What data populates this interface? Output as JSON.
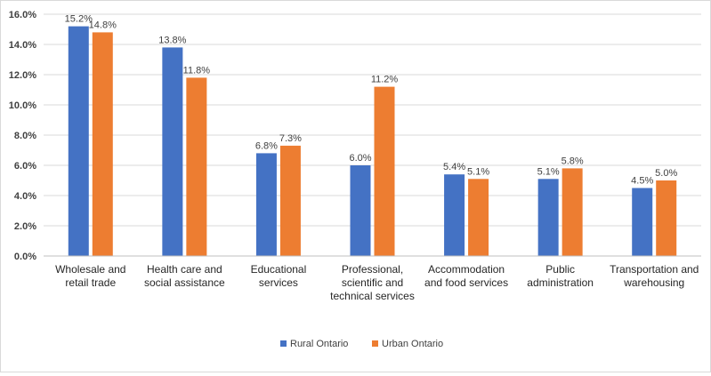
{
  "chart_data": {
    "type": "bar",
    "title": "",
    "xlabel": "",
    "ylabel": "",
    "ylim": [
      0,
      16
    ],
    "yticks": [
      "0.0%",
      "2.0%",
      "4.0%",
      "6.0%",
      "8.0%",
      "10.0%",
      "12.0%",
      "14.0%",
      "16.0%"
    ],
    "grid": true,
    "legend_position": "bottom",
    "categories": [
      [
        "Wholesale and",
        "retail trade"
      ],
      [
        "Health care and",
        "social assistance"
      ],
      [
        "Educational",
        "services"
      ],
      [
        "Professional,",
        "scientific and",
        "technical services"
      ],
      [
        "Accommodation",
        "and food services"
      ],
      [
        "Public",
        "administration"
      ],
      [
        "Transportation and",
        "warehousing"
      ]
    ],
    "series": [
      {
        "name": "Rural Ontario",
        "color": "#4472c4",
        "values": [
          15.2,
          13.8,
          6.8,
          6.0,
          5.4,
          5.1,
          4.5
        ],
        "labels": [
          "15.2%",
          "13.8%",
          "6.8%",
          "6.0%",
          "5.4%",
          "5.1%",
          "4.5%"
        ]
      },
      {
        "name": "Urban Ontario",
        "color": "#ed7d31",
        "values": [
          14.8,
          11.8,
          7.3,
          11.2,
          5.1,
          5.8,
          5.0
        ],
        "labels": [
          "14.8%",
          "11.8%",
          "7.3%",
          "11.2%",
          "5.1%",
          "5.8%",
          "5.0%"
        ]
      }
    ]
  }
}
